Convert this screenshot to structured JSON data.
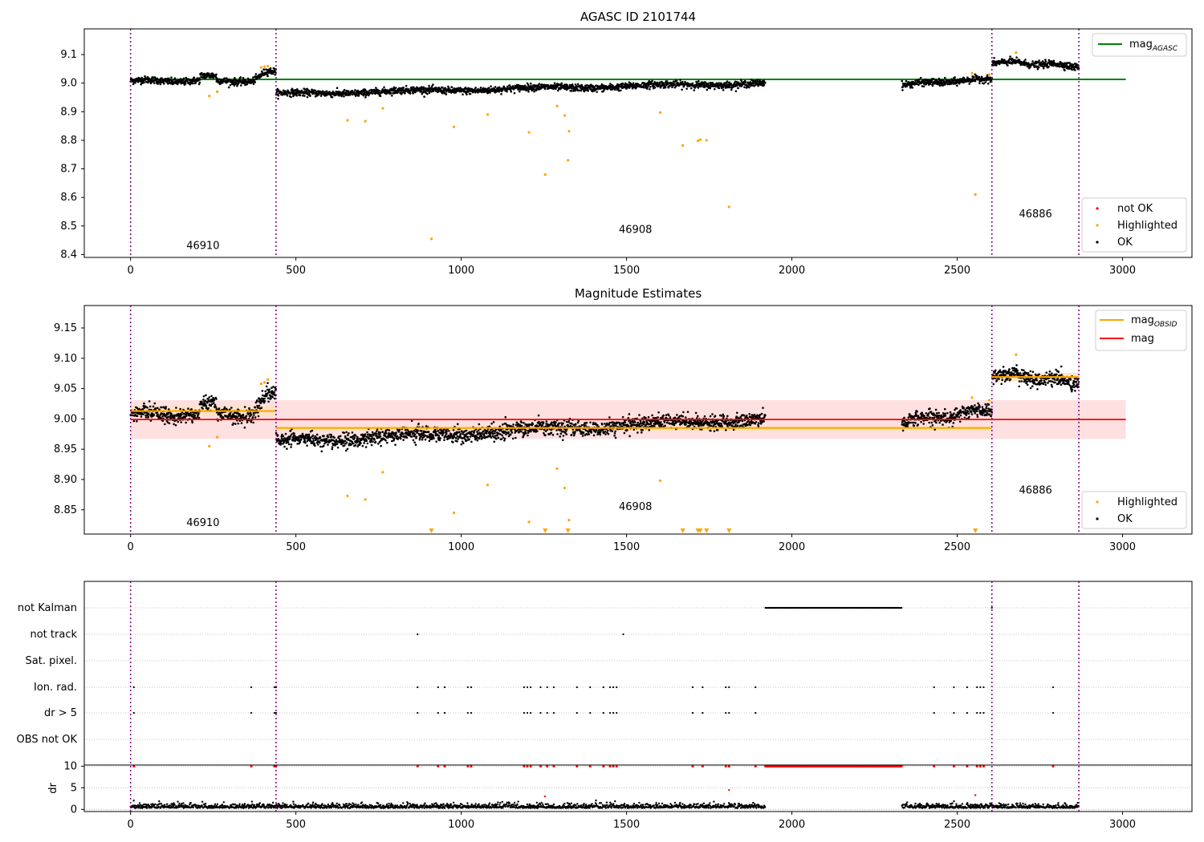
{
  "chart_data": [
    {
      "id": "agasc",
      "type": "scatter",
      "title": "AGASC ID 2101744",
      "xlim": [
        -140,
        3210
      ],
      "ylim": [
        8.39,
        9.19
      ],
      "xticks": [
        0,
        500,
        1000,
        1500,
        2000,
        2500,
        3000
      ],
      "yticks": [
        8.4,
        8.5,
        8.6,
        8.7,
        8.8,
        8.9,
        9.0,
        9.1
      ],
      "obs_boundaries": [
        0,
        440,
        2605,
        2868
      ],
      "obs_labels": [
        {
          "text": "46910",
          "x": 219,
          "y": 8.42
        },
        {
          "text": "46908",
          "x": 1527,
          "y": 8.475
        },
        {
          "text": "46886",
          "x": 2737,
          "y": 8.53
        }
      ],
      "hlines": [
        {
          "name": "mag_AGASC",
          "y": 9.013,
          "x0": 0,
          "x1": 3010,
          "color": "#008000"
        }
      ],
      "highlighted": [
        [
          238,
          8.955
        ],
        [
          262,
          8.97
        ],
        [
          395,
          9.055
        ],
        [
          405,
          9.058
        ],
        [
          415,
          9.06
        ],
        [
          656,
          8.87
        ],
        [
          710,
          8.867
        ],
        [
          763,
          8.912
        ],
        [
          910,
          8.455
        ],
        [
          978,
          8.847
        ],
        [
          1080,
          8.89
        ],
        [
          1205,
          8.828
        ],
        [
          1254,
          8.68
        ],
        [
          1290,
          8.92
        ],
        [
          1313,
          8.887
        ],
        [
          1323,
          8.73
        ],
        [
          1326,
          8.832
        ],
        [
          1602,
          8.897
        ],
        [
          1670,
          8.782
        ],
        [
          1716,
          8.798
        ],
        [
          1723,
          8.802
        ],
        [
          1742,
          8.8
        ],
        [
          1810,
          8.567
        ],
        [
          2545,
          9.035
        ],
        [
          2555,
          8.61
        ],
        [
          2597,
          9.03
        ],
        [
          2678,
          9.107
        ]
      ],
      "legend_lines": [
        "mag",
        "AGASC"
      ],
      "legend_points": [
        "not OK",
        "Highlighted",
        "OK"
      ],
      "colors": {
        "ok": "#000000",
        "highlighted": "#ffa500",
        "not_ok": "#ff0000",
        "agasc_line": "#008000",
        "obs_line": "#800080"
      }
    },
    {
      "id": "estimates",
      "type": "scatter",
      "title": "Magnitude Estimates",
      "xlim": [
        -140,
        3210
      ],
      "ylim": [
        8.81,
        9.187
      ],
      "xticks": [
        0,
        500,
        1000,
        1500,
        2000,
        2500,
        3000
      ],
      "yticks": [
        8.85,
        8.9,
        8.95,
        9.0,
        9.05,
        9.1,
        9.15
      ],
      "obs_boundaries": [
        0,
        440,
        2605,
        2868
      ],
      "obs_labels": [
        {
          "text": "46910",
          "x": 219,
          "y": 8.823
        },
        {
          "text": "46908",
          "x": 1527,
          "y": 8.85
        },
        {
          "text": "46886",
          "x": 2737,
          "y": 8.877
        }
      ],
      "mag": 8.999,
      "mag_band": [
        8.967,
        9.031
      ],
      "mag_band_x": [
        0,
        3010
      ],
      "obsid_segments": [
        {
          "x0": 0,
          "x1": 440,
          "y": 9.013,
          "band": [
            9.005,
            9.021
          ]
        },
        {
          "x0": 440,
          "x1": 2605,
          "y": 8.985,
          "band": [
            8.98,
            8.99
          ]
        },
        {
          "x0": 2605,
          "x1": 2868,
          "y": 9.069,
          "band": [
            9.062,
            9.076
          ]
        }
      ],
      "highlighted": [
        [
          238,
          8.955
        ],
        [
          262,
          8.97
        ],
        [
          395,
          9.058
        ],
        [
          405,
          9.06
        ],
        [
          415,
          9.065
        ],
        [
          656,
          8.873
        ],
        [
          710,
          8.867
        ],
        [
          763,
          8.912
        ],
        [
          978,
          8.845
        ],
        [
          1080,
          8.891
        ],
        [
          1205,
          8.83
        ],
        [
          1290,
          8.918
        ],
        [
          1313,
          8.886
        ],
        [
          1326,
          8.833
        ],
        [
          1602,
          8.898
        ],
        [
          2545,
          9.035
        ],
        [
          2597,
          9.031
        ],
        [
          2678,
          9.106
        ]
      ],
      "highlighted_below": [
        910,
        1254,
        1323,
        1670,
        1716,
        1723,
        1742,
        1810,
        2555
      ],
      "legend_lines": [
        "mag",
        "OBSID",
        "mag"
      ],
      "legend_points": [
        "Highlighted",
        "OK"
      ],
      "colors": {
        "mag_line": "#ff0000",
        "mag_band": "#ffe0e0",
        "obsid_line": "#ffa500",
        "obsid_band": "#ffe2c2"
      }
    },
    {
      "id": "flags",
      "type": "scatter",
      "xlim": [
        -140,
        3210
      ],
      "xticks": [
        0,
        500,
        1000,
        1500,
        2000,
        2500,
        3000
      ],
      "obs_boundaries": [
        0,
        440,
        2605,
        2868
      ],
      "categories": [
        "not Kalman",
        "not track",
        "Sat. pixel.",
        "Ion. rad.",
        "dr > 5",
        "OBS not OK"
      ],
      "not_kalman_x": [
        1920,
        2333
      ],
      "not_track_points": [
        868,
        1490
      ],
      "ion_rad_points": [
        10,
        365,
        435,
        440,
        868,
        930,
        950,
        1020,
        1030,
        1190,
        1200,
        1210,
        1240,
        1260,
        1280,
        1350,
        1390,
        1430,
        1450,
        1460,
        1470,
        1700,
        1730,
        1800,
        1810,
        1890,
        2430,
        2490,
        2530,
        2560,
        2570,
        2580,
        2790
      ],
      "dr_ylabel": "dr",
      "dr_yticks": [
        0,
        5,
        10
      ],
      "dr_ylim": [
        -0.5,
        10.3
      ],
      "dr_high_points": [
        10,
        365,
        435,
        440,
        868,
        930,
        950,
        1020,
        1030,
        1190,
        1200,
        1210,
        1240,
        1260,
        1280,
        1350,
        1390,
        1430,
        1450,
        1460,
        1470,
        1700,
        1730,
        1800,
        1810,
        1890,
        2430,
        2490,
        2530,
        2560,
        2570,
        2580,
        2790
      ],
      "dr_outliers": [
        [
          1253,
          3.0
        ],
        [
          1810,
          4.5
        ],
        [
          2555,
          3.3
        ]
      ]
    }
  ]
}
